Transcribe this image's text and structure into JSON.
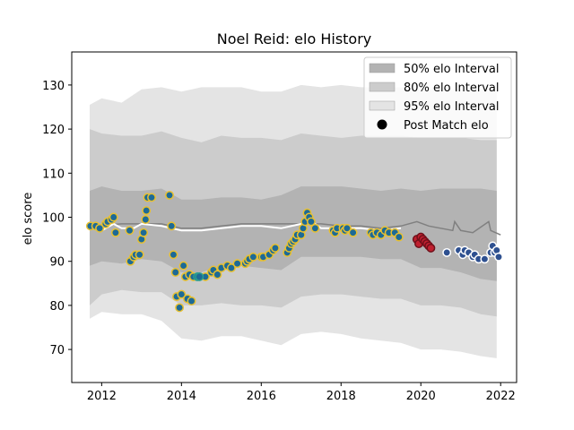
{
  "chart_data": {
    "type": "scatter",
    "title": "Noel Reid: elo History",
    "xlabel": "",
    "ylabel": "elo score",
    "xlim": [
      2011.25,
      2022.4
    ],
    "ylim": [
      62.5,
      137.5
    ],
    "xticks": [
      2012,
      2014,
      2016,
      2018,
      2020,
      2022
    ],
    "yticks": [
      70,
      80,
      90,
      100,
      110,
      120,
      130
    ],
    "grid": false,
    "legend_position": "top-right",
    "colors": {
      "band_50": "#b3b3b3",
      "band_80": "#cccccc",
      "band_95": "#e4e4e4",
      "white_line": "#ffffff",
      "gray_line": "#808080",
      "team1_fill": "#1d6a96",
      "team1_edge": "#e8c030",
      "team2_fill": "#1d6a96",
      "team2_edge": "#8b2030",
      "team3_fill": "#1d6a96",
      "team3_edge": "#2a9d8f",
      "team4_fill": "#c0202f",
      "team4_edge": "#70101a",
      "team5_fill": "#2e5090",
      "team5_edge": "#ffffff",
      "legend_marker": "#000000"
    },
    "legend": [
      {
        "label": "50% elo Interval",
        "kind": "band",
        "color_key": "band_50"
      },
      {
        "label": "80% elo Interval",
        "kind": "band",
        "color_key": "band_80"
      },
      {
        "label": "95% elo Interval",
        "kind": "band",
        "color_key": "band_95"
      },
      {
        "label": "Post Match elo",
        "kind": "marker",
        "color_key": "legend_marker"
      }
    ],
    "bands": {
      "x": [
        2011.7,
        2012.0,
        2012.5,
        2013.0,
        2013.5,
        2014.0,
        2014.5,
        2015.0,
        2015.5,
        2016.0,
        2016.5,
        2017.0,
        2017.5,
        2018.0,
        2018.5,
        2019.0,
        2019.5,
        2020.0,
        2020.5,
        2021.0,
        2021.5,
        2021.9
      ],
      "p95_low": [
        77.0,
        78.5,
        78.0,
        78.0,
        76.5,
        72.5,
        72.0,
        73.0,
        73.0,
        72.0,
        71.0,
        73.5,
        74.0,
        73.5,
        72.5,
        72.0,
        71.5,
        70.0,
        70.0,
        69.5,
        68.5,
        68.0
      ],
      "p80_low": [
        80.0,
        82.5,
        83.5,
        83.0,
        83.0,
        80.0,
        80.0,
        80.5,
        80.0,
        80.0,
        79.5,
        82.0,
        82.5,
        82.5,
        82.0,
        81.5,
        81.5,
        80.0,
        80.0,
        79.5,
        78.0,
        77.5
      ],
      "p50_low": [
        89.0,
        90.0,
        89.5,
        90.5,
        90.0,
        87.5,
        87.5,
        89.0,
        89.0,
        88.5,
        88.0,
        91.0,
        91.0,
        91.0,
        91.0,
        90.5,
        90.5,
        88.5,
        88.5,
        87.5,
        86.0,
        85.5
      ],
      "p50_high": [
        106.0,
        107.0,
        106.0,
        106.0,
        106.5,
        104.0,
        104.0,
        104.5,
        104.5,
        104.0,
        105.0,
        107.0,
        107.0,
        107.0,
        106.5,
        106.0,
        106.5,
        106.0,
        106.5,
        106.5,
        106.5,
        106.0
      ],
      "p80_high": [
        120.0,
        119.0,
        118.5,
        118.5,
        119.5,
        118.0,
        117.0,
        118.5,
        118.0,
        118.0,
        117.5,
        119.0,
        118.5,
        118.0,
        118.5,
        118.5,
        118.5,
        118.0,
        118.0,
        118.0,
        117.5,
        117.5
      ],
      "p95_high": [
        125.5,
        127.0,
        126.0,
        129.0,
        129.5,
        128.5,
        129.5,
        129.5,
        129.5,
        128.5,
        128.5,
        130.0,
        129.5,
        130.0,
        129.5,
        129.5,
        129.5,
        129.0,
        129.0,
        129.0,
        129.0,
        128.5
      ]
    },
    "white_line": {
      "x": [
        2011.7,
        2012.0,
        2012.3,
        2012.5,
        2012.8,
        2013.0,
        2013.5,
        2014.0,
        2014.5,
        2015.0,
        2015.5,
        2016.0,
        2016.5,
        2017.0,
        2017.2,
        2017.5,
        2018.0,
        2018.5,
        2019.0,
        2019.5
      ],
      "y": [
        98.0,
        97.0,
        98.5,
        97.5,
        97.5,
        98.5,
        98.0,
        97.0,
        97.0,
        97.5,
        98.0,
        98.0,
        97.5,
        98.5,
        99.5,
        97.5,
        97.5,
        97.5,
        97.0,
        97.5
      ]
    },
    "gray_line": {
      "x": [
        2011.7,
        2012.5,
        2013.0,
        2013.5,
        2014.0,
        2014.5,
        2015.0,
        2015.5,
        2016.0,
        2016.5,
        2017.0,
        2017.5,
        2018.0,
        2018.5,
        2019.0,
        2019.5,
        2019.9,
        2020.2,
        2020.5,
        2020.8,
        2020.85,
        2021.0,
        2021.3,
        2021.7,
        2021.75,
        2022.0
      ],
      "y": [
        98.0,
        98.5,
        98.5,
        98.5,
        97.5,
        97.5,
        98.0,
        98.5,
        98.5,
        98.5,
        98.5,
        98.5,
        98.0,
        98.0,
        97.5,
        98.0,
        99.0,
        98.0,
        97.5,
        97.0,
        99.0,
        97.0,
        96.5,
        99.0,
        97.0,
        96.0
      ]
    },
    "series": [
      {
        "team": "team1",
        "points": [
          [
            2011.72,
            98.0
          ],
          [
            2011.85,
            98.0
          ],
          [
            2011.95,
            97.5
          ],
          [
            2012.1,
            98.5
          ],
          [
            2012.15,
            99.0
          ],
          [
            2012.25,
            99.5
          ],
          [
            2012.3,
            100.0
          ],
          [
            2012.35,
            96.5
          ],
          [
            2012.7,
            97.0
          ],
          [
            2012.72,
            90.0
          ],
          [
            2012.8,
            91.0
          ],
          [
            2012.85,
            91.5
          ],
          [
            2012.95,
            91.5
          ],
          [
            2013.0,
            95.0
          ],
          [
            2013.05,
            96.5
          ],
          [
            2013.1,
            99.5
          ],
          [
            2013.12,
            101.5
          ],
          [
            2013.15,
            104.5
          ],
          [
            2013.25,
            104.5
          ],
          [
            2013.7,
            105.0
          ],
          [
            2013.75,
            98.0
          ],
          [
            2013.8,
            91.5
          ],
          [
            2013.85,
            87.5
          ],
          [
            2013.88,
            82.0
          ],
          [
            2013.95,
            79.5
          ],
          [
            2014.0,
            82.5
          ],
          [
            2014.05,
            89.0
          ],
          [
            2014.1,
            86.5
          ],
          [
            2014.15,
            81.5
          ],
          [
            2014.2,
            87.0
          ],
          [
            2014.25,
            81.0
          ],
          [
            2014.3,
            86.5
          ],
          [
            2014.6,
            86.5
          ],
          [
            2014.75,
            87.5
          ],
          [
            2014.8,
            88.0
          ],
          [
            2014.9,
            87.0
          ],
          [
            2015.0,
            88.5
          ],
          [
            2015.15,
            89.0
          ],
          [
            2015.25,
            88.5
          ],
          [
            2015.4,
            89.5
          ],
          [
            2015.6,
            89.5
          ],
          [
            2015.65,
            90.0
          ],
          [
            2015.7,
            90.5
          ],
          [
            2015.8,
            91.0
          ],
          [
            2016.0,
            91.0
          ],
          [
            2016.05,
            91.0
          ],
          [
            2016.2,
            91.5
          ],
          [
            2016.3,
            92.5
          ],
          [
            2016.35,
            93.0
          ],
          [
            2016.65,
            92.0
          ],
          [
            2016.7,
            93.0
          ],
          [
            2016.75,
            94.0
          ],
          [
            2016.8,
            94.5
          ],
          [
            2016.85,
            95.0
          ],
          [
            2016.9,
            96.0
          ],
          [
            2017.0,
            96.0
          ],
          [
            2017.05,
            97.5
          ],
          [
            2017.1,
            99.0
          ],
          [
            2017.15,
            101.0
          ],
          [
            2017.2,
            100.0
          ],
          [
            2017.25,
            99.0
          ],
          [
            2017.35,
            97.5
          ],
          [
            2017.8,
            97.0
          ],
          [
            2017.85,
            96.5
          ],
          [
            2017.9,
            97.5
          ],
          [
            2018.05,
            97.5
          ],
          [
            2018.1,
            97.0
          ],
          [
            2018.15,
            97.5
          ],
          [
            2018.3,
            96.5
          ],
          [
            2018.75,
            96.5
          ],
          [
            2018.8,
            96.0
          ],
          [
            2018.9,
            96.5
          ],
          [
            2019.0,
            96.0
          ],
          [
            2019.1,
            97.0
          ],
          [
            2019.2,
            96.5
          ],
          [
            2019.35,
            96.5
          ],
          [
            2019.45,
            95.5
          ]
        ]
      },
      {
        "team": "team3",
        "points": [
          [
            2014.4,
            86.5
          ],
          [
            2014.45,
            86.5
          ]
        ]
      },
      {
        "team": "team4",
        "points": [
          [
            2019.9,
            95.0
          ],
          [
            2019.95,
            94.0
          ],
          [
            2020.0,
            95.5
          ],
          [
            2020.05,
            95.0
          ],
          [
            2020.1,
            94.5
          ],
          [
            2020.15,
            94.0
          ],
          [
            2020.2,
            93.5
          ],
          [
            2020.25,
            93.0
          ]
        ]
      },
      {
        "team": "team5",
        "points": [
          [
            2020.65,
            92.0
          ],
          [
            2020.95,
            92.5
          ],
          [
            2021.05,
            91.5
          ],
          [
            2021.1,
            92.5
          ],
          [
            2021.2,
            92.0
          ],
          [
            2021.3,
            91.0
          ],
          [
            2021.35,
            91.5
          ],
          [
            2021.45,
            90.5
          ],
          [
            2021.6,
            90.5
          ],
          [
            2021.75,
            92.0
          ],
          [
            2021.8,
            93.5
          ],
          [
            2021.85,
            92.0
          ],
          [
            2021.9,
            92.5
          ],
          [
            2021.95,
            91.0
          ]
        ]
      }
    ]
  }
}
